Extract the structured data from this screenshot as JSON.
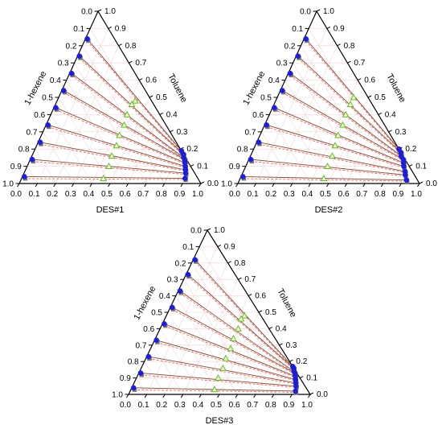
{
  "axis_labels": {
    "left": "1-hexene",
    "right": "Toluene"
  },
  "ticks": {
    "left": [
      "0.0",
      "0.1",
      "0.2",
      "0.3",
      "0.4",
      "0.5",
      "0.6",
      "0.7",
      "0.8",
      "0.9",
      "1.0"
    ],
    "right": [
      "1.0",
      "0.9",
      "0.8",
      "0.7",
      "0.6",
      "0.5",
      "0.4",
      "0.3",
      "0.2",
      "0.1",
      "0.0"
    ],
    "bottom": [
      "0.0",
      "0.1",
      "0.2",
      "0.3",
      "0.4",
      "0.5",
      "0.6",
      "0.7",
      "0.8",
      "0.9",
      "1.0"
    ]
  },
  "colors": {
    "frame": "#000000",
    "tie_line_exp": "#7a4a3a",
    "tie_line_calc": "#e05a4a",
    "grid": "#f3d6d6",
    "raffinate": "#1f1fd0",
    "extract": "#777777",
    "feed": "#6ab82b"
  },
  "chart_data": [
    {
      "type": "scatter",
      "subtype": "ternary",
      "title": "DES#1",
      "components": [
        "DES#1",
        "Toluene",
        "1-hexene"
      ],
      "grid": true,
      "tie_lines": [
        {
          "raffinate": [
            0.01,
            0.84,
            0.15
          ],
          "extract": [
            0.81,
            0.19,
            0.0
          ],
          "feed": [
            0.43,
            0.48,
            0.09
          ]
        },
        {
          "raffinate": [
            0.01,
            0.74,
            0.25
          ],
          "extract": [
            0.83,
            0.17,
            0.0
          ],
          "feed": [
            0.42,
            0.46,
            0.12
          ]
        },
        {
          "raffinate": [
            0.01,
            0.64,
            0.35
          ],
          "extract": [
            0.84,
            0.15,
            0.01
          ],
          "feed": [
            0.42,
            0.4,
            0.18
          ]
        },
        {
          "raffinate": [
            0.01,
            0.54,
            0.45
          ],
          "extract": [
            0.85,
            0.14,
            0.01
          ],
          "feed": [
            0.43,
            0.34,
            0.23
          ]
        },
        {
          "raffinate": [
            0.01,
            0.44,
            0.55
          ],
          "extract": [
            0.86,
            0.12,
            0.02
          ],
          "feed": [
            0.43,
            0.28,
            0.29
          ]
        },
        {
          "raffinate": [
            0.01,
            0.34,
            0.65
          ],
          "extract": [
            0.87,
            0.1,
            0.03
          ],
          "feed": [
            0.44,
            0.22,
            0.34
          ]
        },
        {
          "raffinate": [
            0.01,
            0.24,
            0.75
          ],
          "extract": [
            0.88,
            0.08,
            0.04
          ],
          "feed": [
            0.44,
            0.16,
            0.4
          ]
        },
        {
          "raffinate": [
            0.01,
            0.14,
            0.85
          ],
          "extract": [
            0.89,
            0.06,
            0.05
          ],
          "feed": [
            0.45,
            0.1,
            0.45
          ]
        },
        {
          "raffinate": [
            0.01,
            0.04,
            0.95
          ],
          "extract": [
            0.9,
            0.03,
            0.07
          ],
          "feed": [
            0.45,
            0.03,
            0.52
          ]
        }
      ]
    },
    {
      "type": "scatter",
      "subtype": "ternary",
      "title": "DES#2",
      "components": [
        "DES#2",
        "Toluene",
        "1-hexene"
      ],
      "grid": true,
      "tie_lines": [
        {
          "raffinate": [
            0.01,
            0.84,
            0.15
          ],
          "extract": [
            0.8,
            0.2,
            0.0
          ],
          "feed": [
            0.42,
            0.5,
            0.08
          ]
        },
        {
          "raffinate": [
            0.01,
            0.74,
            0.25
          ],
          "extract": [
            0.82,
            0.18,
            0.0
          ],
          "feed": [
            0.42,
            0.46,
            0.12
          ]
        },
        {
          "raffinate": [
            0.01,
            0.64,
            0.35
          ],
          "extract": [
            0.83,
            0.16,
            0.01
          ],
          "feed": [
            0.42,
            0.4,
            0.18
          ]
        },
        {
          "raffinate": [
            0.01,
            0.54,
            0.45
          ],
          "extract": [
            0.85,
            0.14,
            0.01
          ],
          "feed": [
            0.43,
            0.34,
            0.23
          ]
        },
        {
          "raffinate": [
            0.01,
            0.44,
            0.55
          ],
          "extract": [
            0.86,
            0.12,
            0.02
          ],
          "feed": [
            0.43,
            0.28,
            0.29
          ]
        },
        {
          "raffinate": [
            0.01,
            0.34,
            0.65
          ],
          "extract": [
            0.87,
            0.1,
            0.03
          ],
          "feed": [
            0.44,
            0.22,
            0.34
          ]
        },
        {
          "raffinate": [
            0.01,
            0.24,
            0.75
          ],
          "extract": [
            0.89,
            0.07,
            0.04
          ],
          "feed": [
            0.45,
            0.16,
            0.39
          ]
        },
        {
          "raffinate": [
            0.01,
            0.14,
            0.85
          ],
          "extract": [
            0.9,
            0.05,
            0.05
          ],
          "feed": [
            0.45,
            0.1,
            0.45
          ]
        },
        {
          "raffinate": [
            0.01,
            0.04,
            0.95
          ],
          "extract": [
            0.92,
            0.02,
            0.06
          ],
          "feed": [
            0.46,
            0.03,
            0.51
          ]
        }
      ]
    },
    {
      "type": "scatter",
      "subtype": "ternary",
      "title": "DES#3",
      "components": [
        "DES#3",
        "Toluene",
        "1-hexene"
      ],
      "grid": true,
      "tie_lines": [
        {
          "raffinate": [
            0.01,
            0.82,
            0.17
          ],
          "extract": [
            0.83,
            0.17,
            0.0
          ],
          "feed": [
            0.43,
            0.48,
            0.09
          ]
        },
        {
          "raffinate": [
            0.01,
            0.73,
            0.26
          ],
          "extract": [
            0.84,
            0.16,
            0.0
          ],
          "feed": [
            0.42,
            0.46,
            0.12
          ]
        },
        {
          "raffinate": [
            0.01,
            0.63,
            0.36
          ],
          "extract": [
            0.85,
            0.14,
            0.01
          ],
          "feed": [
            0.43,
            0.4,
            0.17
          ]
        },
        {
          "raffinate": [
            0.01,
            0.53,
            0.46
          ],
          "extract": [
            0.86,
            0.13,
            0.01
          ],
          "feed": [
            0.43,
            0.34,
            0.23
          ]
        },
        {
          "raffinate": [
            0.01,
            0.43,
            0.56
          ],
          "extract": [
            0.87,
            0.11,
            0.02
          ],
          "feed": [
            0.44,
            0.28,
            0.28
          ]
        },
        {
          "raffinate": [
            0.01,
            0.33,
            0.66
          ],
          "extract": [
            0.88,
            0.09,
            0.03
          ],
          "feed": [
            0.44,
            0.22,
            0.34
          ]
        },
        {
          "raffinate": [
            0.01,
            0.23,
            0.76
          ],
          "extract": [
            0.89,
            0.07,
            0.04
          ],
          "feed": [
            0.45,
            0.16,
            0.39
          ]
        },
        {
          "raffinate": [
            0.01,
            0.13,
            0.86
          ],
          "extract": [
            0.9,
            0.05,
            0.05
          ],
          "feed": [
            0.45,
            0.1,
            0.45
          ]
        },
        {
          "raffinate": [
            0.01,
            0.04,
            0.95
          ],
          "extract": [
            0.91,
            0.02,
            0.07
          ],
          "feed": [
            0.46,
            0.03,
            0.51
          ]
        }
      ]
    }
  ]
}
